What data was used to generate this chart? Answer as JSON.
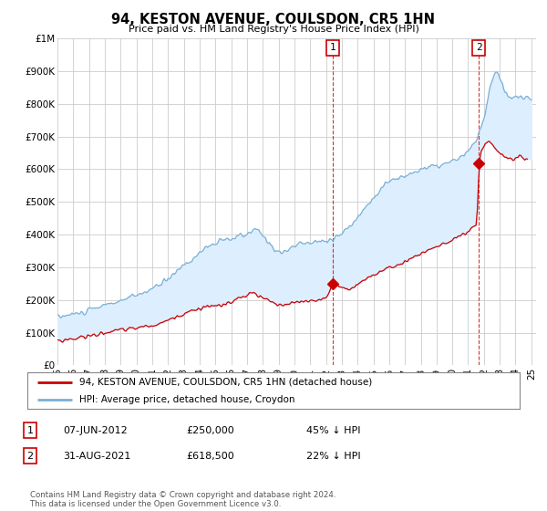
{
  "title": "94, KESTON AVENUE, COULSDON, CR5 1HN",
  "subtitle": "Price paid vs. HM Land Registry's House Price Index (HPI)",
  "red_label": "94, KESTON AVENUE, COULSDON, CR5 1HN (detached house)",
  "blue_label": "HPI: Average price, detached house, Croydon",
  "annotation1": {
    "num": "1",
    "date": "07-JUN-2012",
    "price": "£250,000",
    "pct": "45% ↓ HPI",
    "x": 2012.44,
    "y_red": 250000
  },
  "annotation2": {
    "num": "2",
    "date": "31-AUG-2021",
    "price": "£618,500",
    "pct": "22% ↓ HPI",
    "x": 2021.67,
    "y_red": 618500
  },
  "footer": "Contains HM Land Registry data © Crown copyright and database right 2024.\nThis data is licensed under the Open Government Licence v3.0.",
  "ylim": [
    0,
    1000000
  ],
  "xlim": [
    1995.0,
    2025.3
  ],
  "yticks": [
    0,
    100000,
    200000,
    300000,
    400000,
    500000,
    600000,
    700000,
    800000,
    900000,
    1000000
  ],
  "ytick_labels": [
    "£0",
    "£100K",
    "£200K",
    "£300K",
    "£400K",
    "£500K",
    "£600K",
    "£700K",
    "£800K",
    "£900K",
    "£1M"
  ],
  "xticks": [
    1995,
    1996,
    1997,
    1998,
    1999,
    2000,
    2001,
    2002,
    2003,
    2004,
    2005,
    2006,
    2007,
    2008,
    2009,
    2010,
    2011,
    2012,
    2013,
    2014,
    2015,
    2016,
    2017,
    2018,
    2019,
    2020,
    2021,
    2022,
    2023,
    2024,
    2025
  ],
  "xtick_labels": [
    "95",
    "96",
    "97",
    "98",
    "99",
    "00",
    "01",
    "02",
    "03",
    "04",
    "05",
    "06",
    "07",
    "08",
    "09",
    "10",
    "11",
    "12",
    "13",
    "14",
    "15",
    "16",
    "17",
    "18",
    "19",
    "20",
    "21",
    "22",
    "23",
    "24",
    "25"
  ],
  "red_color": "#cc0000",
  "blue_color": "#7ab0d4",
  "fill_color": "#ddeeff",
  "grid_color": "#cccccc",
  "bg_color": "#ffffff"
}
